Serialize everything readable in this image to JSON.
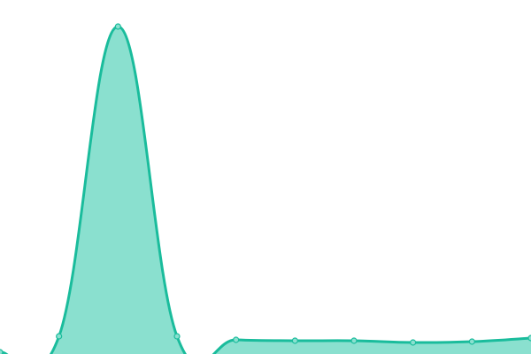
{
  "chart_data": {
    "type": "area",
    "title": "",
    "xlabel": "",
    "ylabel": "",
    "x": [
      0,
      1,
      2,
      3,
      4,
      5,
      6,
      7,
      8,
      9
    ],
    "values": [
      2,
      20,
      370,
      20,
      16,
      15,
      15,
      13,
      14,
      18
    ],
    "ylim": [
      0,
      400
    ],
    "grid": false,
    "axes_visible": false,
    "smooth": true,
    "colors": {
      "line": "#1abc9c",
      "fill": "#8ae0cf",
      "marker_fill": "#8ae0cf"
    }
  }
}
